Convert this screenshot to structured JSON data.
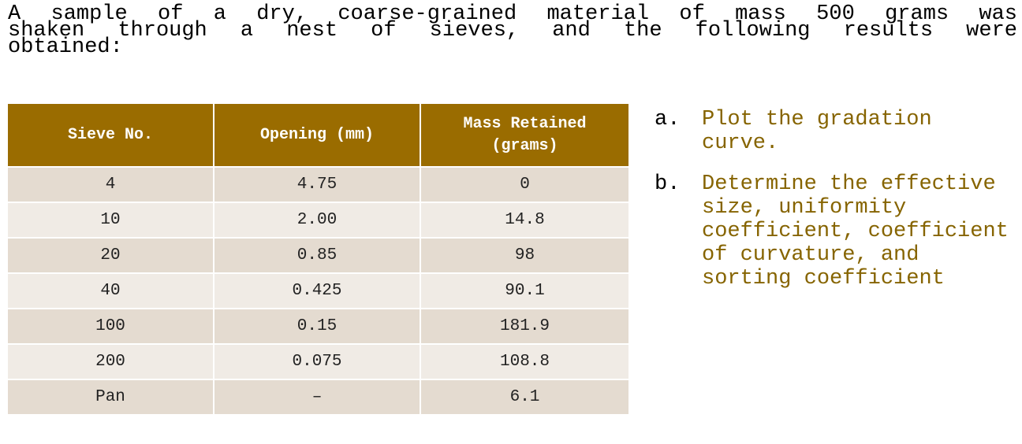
{
  "intro": {
    "line1": "A sample of a dry, coarse-grained material of mass 500 grams was",
    "line2": "shaken through a nest of sieves, and the following results were",
    "line3": "obtained:"
  },
  "table": {
    "headers": [
      "Sieve No.",
      "Opening (mm)",
      "Mass Retained (grams)"
    ],
    "rows": [
      [
        "4",
        "4.75",
        "0"
      ],
      [
        "10",
        "2.00",
        "14.8"
      ],
      [
        "20",
        "0.85",
        "98"
      ],
      [
        "40",
        "0.425",
        "90.1"
      ],
      [
        "100",
        "0.15",
        "181.9"
      ],
      [
        "200",
        "0.075",
        "108.8"
      ],
      [
        "Pan",
        "–",
        "6.1"
      ]
    ]
  },
  "tasks": [
    {
      "marker": "a.",
      "text": "Plot the gradation curve."
    },
    {
      "marker": "b.",
      "text": "Determine the effective size, uniformity coefficient, coefficient of curvature, and sorting coefficient"
    }
  ],
  "colors": {
    "header_bg": "#9a6c00",
    "header_text": "#ffffff",
    "row_dark": "#e4dbd0",
    "row_light": "#f0ebe5",
    "task_text": "#866400"
  }
}
